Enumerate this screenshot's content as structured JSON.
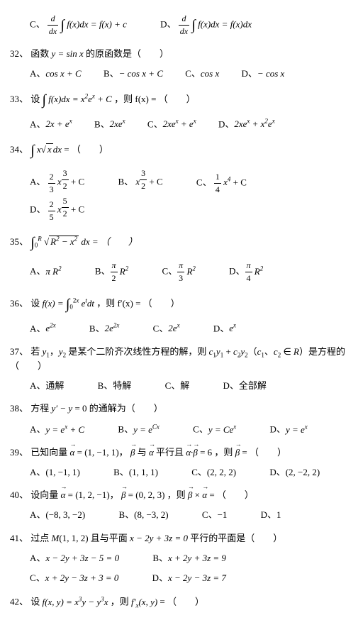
{
  "top_opts": {
    "c_label": "C、",
    "c_expr": "(d/dx)∫f(x)dx = f(x)+c",
    "d_label": "D、",
    "d_expr": "(d/dx)∫f(x)dx = f(x)dx"
  },
  "q32": {
    "num": "32、",
    "text_a": "函数 ",
    "eq": "y = sin x",
    "text_b": " 的原函数是（　　）",
    "A": "A、",
    "A_expr": "cos x + C",
    "B": "B、",
    "B_expr": "− cos x + C",
    "C": "C、",
    "C_expr": "cos x",
    "D": "D、",
    "D_expr": "− cos x"
  },
  "q33": {
    "num": "33、",
    "text_a": "设",
    "eq": "∫ f(x)dx = x² eˣ + C",
    "text_b": "，则 f(x) = （　　）",
    "A": "A、",
    "A_expr": "2x + eˣ",
    "B": "B、",
    "B_expr": "2xeˣ",
    "C": "C、",
    "C_expr": "2xeˣ + eˣ",
    "D": "D、",
    "D_expr": "2xeˣ + x² eˣ"
  },
  "q34": {
    "num": "34、",
    "eq": "∫ x√x dx = （　　）",
    "A": "A、",
    "A_n": "2",
    "A_d": "3",
    "A_exp": "3",
    "A_exp_d": "2",
    "A_tail": " + C",
    "B": "B、",
    "B_exp": "3",
    "B_exp_d": "2",
    "B_tail": " + C",
    "C": "C、",
    "C_n": "1",
    "C_d": "4",
    "C_pow": "4",
    "C_tail": " + C",
    "D": "D、",
    "D_n": "2",
    "D_d": "5",
    "D_exp": "5",
    "D_exp_d": "2",
    "D_tail": " + C"
  },
  "q35": {
    "num": "35、",
    "lo": "0",
    "hi": "R",
    "radicand": "R² − x²",
    "tail": " dx = （　　）",
    "A": "A、",
    "A_expr": "π R²",
    "B": "B、",
    "B_n": "π",
    "B_d": "2",
    "B_tail": " R²",
    "C": "C、",
    "C_n": "π",
    "C_d": "3",
    "C_tail": " R²",
    "D": "D、",
    "D_n": "π",
    "D_d": "4",
    "D_tail": " R²"
  },
  "q36": {
    "num": "36、",
    "text_a": "设 ",
    "lhs": "f(x) = ",
    "lo": "0",
    "hi": "2x",
    "integrand": "eᵗ dt",
    "text_b": "，则 f′(x) = （　　）",
    "A": "A、",
    "A_expr": "e²ˣ",
    "B": "B、",
    "B_expr": "2e²ˣ",
    "C": "C、",
    "C_expr": "2eˣ",
    "D": "D、",
    "D_expr": "eˣ"
  },
  "q37": {
    "num": "37、",
    "text": "若 y₁，y₂ 是某个二阶齐次线性方程的解，则 c₁y₁ + c₂y₂（c₁、c₂ ∈ R）是方程的（　　）",
    "A": "A、通解",
    "B": "B、特解",
    "C": "C、解",
    "D": "D、全部解"
  },
  "q38": {
    "num": "38、",
    "text": "方程 y′ − y = 0 的通解为（　　）",
    "A": "A、",
    "A_expr": "y = eˣ + C",
    "B": "B、",
    "B_expr": "y = eᶜˣ",
    "C": "C、",
    "C_expr": "y = Ceˣ",
    "D": "D、",
    "D_expr": "y = eˣ"
  },
  "q39": {
    "num": "39、",
    "text_a": "已知向量 ",
    "alpha_eq": "α = (1, −1, 1)",
    "text_b": "， β 与 α 平行且 α∙β = 6 ，则 β = （　　）",
    "A": "A、",
    "A_expr": "(1, −1, 1)",
    "B": "B、",
    "B_expr": "(1, 1, 1)",
    "C": "C、",
    "C_expr": "(2, 2, 2)",
    "D": "D、",
    "D_expr": "(2, −2, 2)"
  },
  "q40": {
    "num": "40、",
    "text_a": "设向量 ",
    "alpha_eq": "α = (1, 2, −1)",
    "text_b": "， β = (0, 2, 3) ，则 β × α = （　　）",
    "A": "A、",
    "A_expr": "(−8, 3, −2)",
    "B": "B、",
    "B_expr": "(8, −3, 2)",
    "C": "C、",
    "C_expr": "−1",
    "D": "D、",
    "D_expr": "1"
  },
  "q41": {
    "num": "41、",
    "text": "过点 M(1, 1, 2) 且与平面 x − 2y + 3z = 0 平行的平面是（　　）",
    "A": "A、",
    "A_expr": "x − 2y + 3z − 5 = 0",
    "B": "B、",
    "B_expr": "x + 2y + 3z = 9",
    "C": "C、",
    "C_expr": "x + 2y − 3z + 3 = 0",
    "D": "D、",
    "D_expr": "x − 2y − 3z = 7"
  },
  "q42": {
    "num": "42、",
    "text": "设 f(x, y) = x³y − y³x ，则 f′ₓ(x, y) = （　　）"
  }
}
